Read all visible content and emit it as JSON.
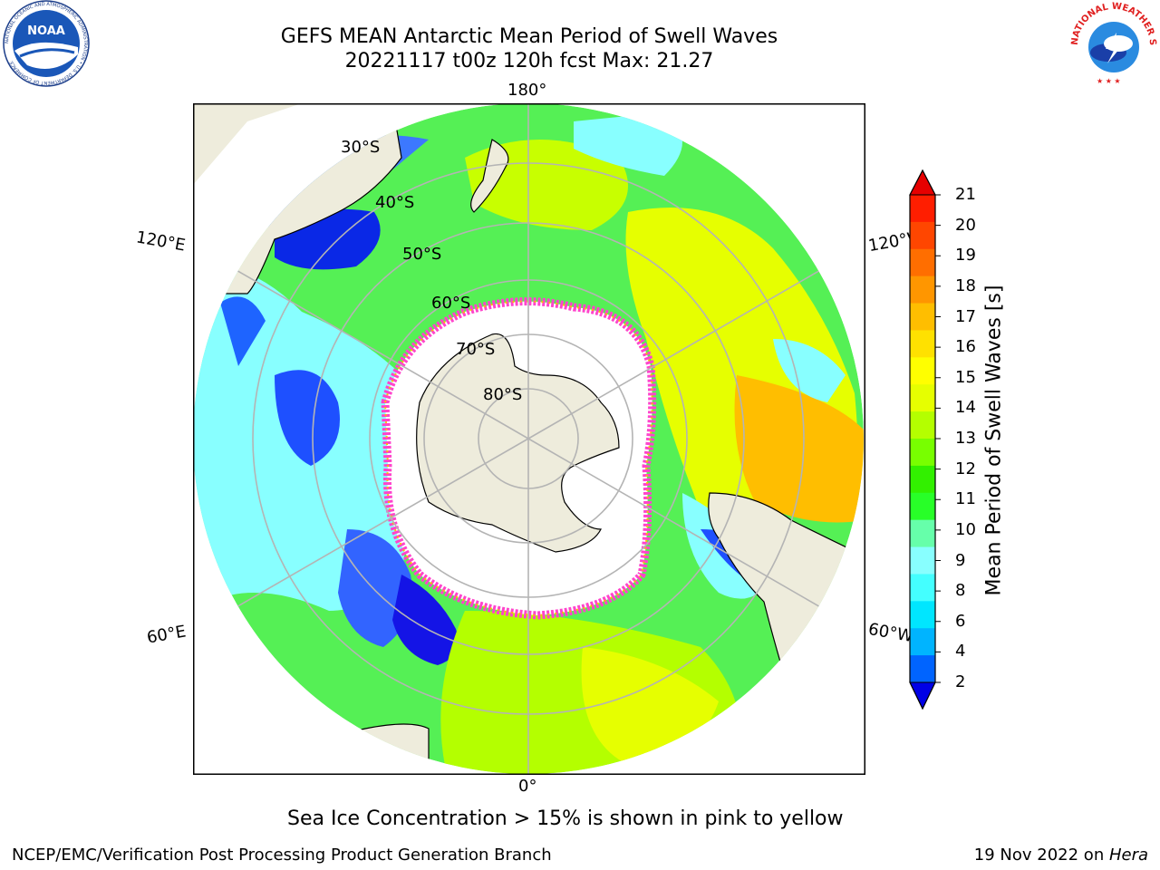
{
  "header": {
    "title_line1": "GEFS MEAN Antarctic Mean Period of Swell Waves",
    "title_line2": "20221117 t00z 120h fcst   Max: 21.27"
  },
  "logos": {
    "noaa_text": "NOAA",
    "noaa_ring": "NATIONAL OCEANIC AND ATMOSPHERIC ADMINISTRATION • U.S. DEPARTMENT OF COMMERCE",
    "nws_ring": "NATIONAL WEATHER SERVICE"
  },
  "map": {
    "longitude_labels": [
      "180°",
      "120°E",
      "120°W",
      "60°E",
      "60°W",
      "0°"
    ],
    "latitude_labels": [
      "30°S",
      "40°S",
      "50°S",
      "60°S",
      "70°S",
      "80°S"
    ],
    "colors": {
      "land": "#eeecdc",
      "ice": "#ffffff",
      "ice_edge": "#ff44cc",
      "grid": "#b4b4b4"
    }
  },
  "colorbar": {
    "title": "Mean Period of Swell Waves [s]",
    "ticks": [
      "21",
      "20",
      "19",
      "18",
      "17",
      "16",
      "15",
      "14",
      "13",
      "12",
      "11",
      "10",
      "9",
      "8",
      "6",
      "4",
      "2"
    ],
    "colors": [
      "#ff1e00",
      "#ff4600",
      "#ff6e00",
      "#ff9600",
      "#ffbe00",
      "#ffe100",
      "#ffff00",
      "#e6ff00",
      "#b4ff00",
      "#78ff00",
      "#32f000",
      "#28ff28",
      "#66ffaa",
      "#88ffff",
      "#44ffff",
      "#00e6ff",
      "#00b4ff",
      "#0064ff"
    ],
    "min_arrow_color": "#0000e6",
    "max_arrow_color": "#e60000"
  },
  "notes": {
    "sea_ice": "Sea Ice Concentration > 15% is shown in pink to yellow"
  },
  "footer": {
    "left": "NCEP/EMC/Verification Post Processing Product Generation Branch",
    "right_prefix": "19 Nov 2022 on ",
    "right_machine": "Hera"
  }
}
